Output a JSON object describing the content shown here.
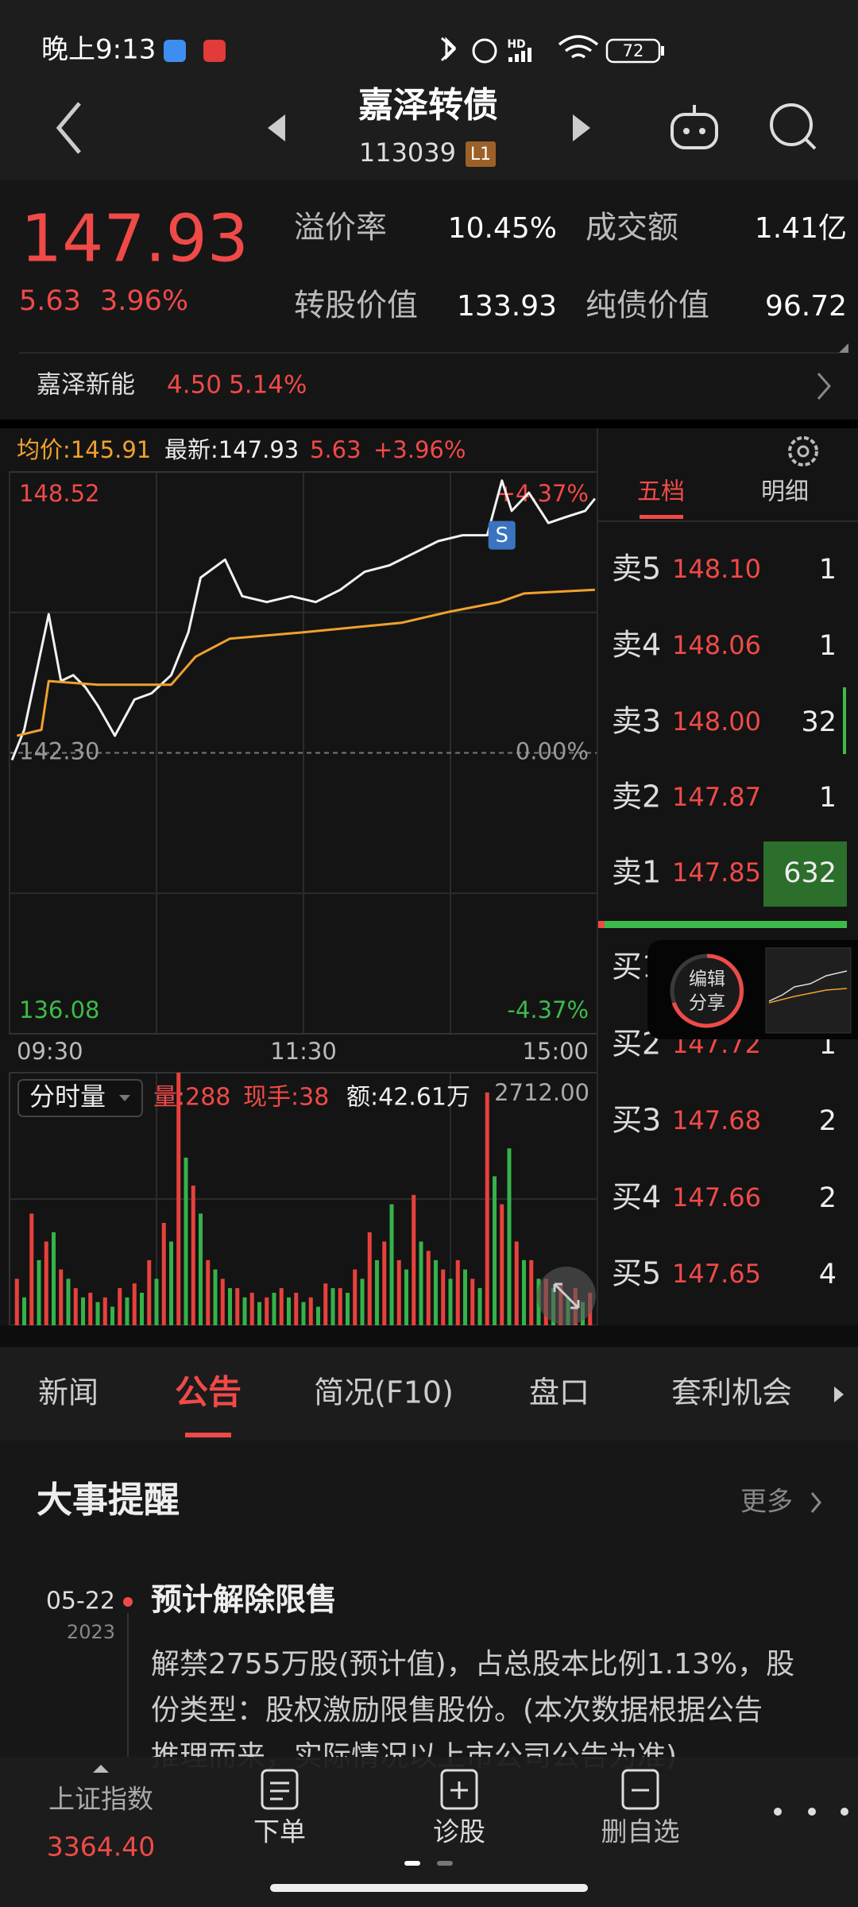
{
  "status_bar": {
    "time": "晚上9:13",
    "network": "HD",
    "battery": "72"
  },
  "header": {
    "title": "嘉泽转债",
    "code": "113039",
    "badge": "L1"
  },
  "quote": {
    "price": "147.93",
    "change": "5.63",
    "change_pct": "3.96%",
    "stats": [
      {
        "label": "溢价率",
        "value": "10.45%"
      },
      {
        "label": "成交额",
        "value": "1.41亿"
      },
      {
        "label": "转股价值",
        "value": "133.93"
      },
      {
        "label": "纯债价值",
        "value": "96.72"
      }
    ]
  },
  "related": {
    "name": "嘉泽新能",
    "price": "4.50",
    "change_pct": "5.14%"
  },
  "chart_header": {
    "avg": "均价:145.91",
    "latest": "最新:147.93",
    "change": "5.63",
    "change_pct": "+3.96%"
  },
  "chart_data": [
    {
      "type": "line",
      "xlim": [
        0,
        240
      ],
      "xticks": [
        {
          "value": 0,
          "label": "09:30"
        },
        {
          "value": 120,
          "label": "11:30"
        },
        {
          "value": 240,
          "label": "15:00"
        }
      ],
      "ylim": [
        136.08,
        148.52
      ],
      "yticks": [
        136.08,
        {
          "value": 142.3,
          "label": "142.30"
        },
        148.52
      ],
      "y2lim": [
        -4.37,
        4.37
      ],
      "y2ticks": [
        {
          "value": -4.37,
          "label": "-4.37%"
        },
        {
          "value": 0,
          "label": "0.00%"
        },
        {
          "value": 4.37,
          "label": "+4.37%"
        }
      ],
      "series": [
        {
          "color": "#f2f2f2",
          "x": [
            1,
            6,
            16,
            21,
            26,
            31,
            36,
            43,
            51,
            58,
            66,
            73,
            78,
            88,
            95,
            105,
            115,
            125,
            135,
            145,
            155,
            165,
            175,
            185,
            195,
            201,
            205,
            212,
            220,
            227,
            235,
            239
          ],
          "values": [
            142.14,
            142.81,
            145.37,
            143.89,
            144.02,
            143.75,
            143.35,
            142.68,
            143.48,
            143.62,
            144.02,
            144.97,
            146.18,
            146.58,
            145.77,
            145.64,
            145.77,
            145.64,
            145.91,
            146.31,
            146.45,
            146.72,
            146.99,
            147.12,
            147.12,
            148.33,
            147.66,
            148.06,
            147.39,
            147.52,
            147.66,
            147.93
          ]
        },
        {
          "color": "#f0a030",
          "x": [
            3,
            13,
            16,
            36,
            66,
            76,
            90,
            120,
            160,
            180,
            200,
            210,
            239
          ],
          "values": [
            142.68,
            142.81,
            143.89,
            143.81,
            143.81,
            144.43,
            144.83,
            144.97,
            145.18,
            145.43,
            145.64,
            145.83,
            145.91
          ]
        }
      ],
      "annotations": [
        {
          "text": "S",
          "x": 201,
          "y": 147.12
        }
      ]
    },
    {
      "type": "bar",
      "xlim": [
        0,
        240
      ],
      "ylim": [
        0,
        2712
      ],
      "yticks": [
        {
          "value": 2712,
          "label": "2712.00"
        }
      ],
      "series": [
        {
          "color": "#e8413c",
          "x": [
            3,
            9,
            15,
            21,
            27,
            33,
            39,
            45,
            51,
            57,
            63,
            69,
            75,
            81,
            87,
            93,
            99,
            105,
            111,
            117,
            123,
            129,
            135,
            141,
            147,
            153,
            159,
            165,
            171,
            177,
            183,
            189,
            195,
            201,
            207,
            213,
            219,
            225,
            231,
            237
          ],
          "values": [
            500,
            1200,
            900,
            600,
            400,
            350,
            300,
            400,
            450,
            700,
            1100,
            2712,
            1500,
            700,
            500,
            400,
            350,
            300,
            400,
            350,
            300,
            450,
            400,
            600,
            1000,
            900,
            700,
            1400,
            800,
            600,
            700,
            500,
            2500,
            1300,
            900,
            700,
            500,
            450,
            400,
            350
          ]
        },
        {
          "color": "#35b24a",
          "x": [
            6,
            12,
            18,
            24,
            30,
            36,
            42,
            48,
            54,
            60,
            66,
            72,
            78,
            84,
            90,
            96,
            102,
            108,
            114,
            120,
            126,
            132,
            138,
            144,
            150,
            156,
            162,
            168,
            174,
            180,
            186,
            192,
            198,
            204,
            210,
            216,
            222,
            228,
            234
          ],
          "values": [
            300,
            700,
            1000,
            500,
            300,
            250,
            200,
            300,
            350,
            500,
            900,
            1800,
            1200,
            600,
            400,
            300,
            250,
            350,
            300,
            250,
            200,
            400,
            350,
            500,
            700,
            1300,
            600,
            900,
            700,
            500,
            600,
            400,
            1600,
            1900,
            700,
            500,
            400,
            300,
            250
          ]
        }
      ]
    }
  ],
  "volume_header": {
    "mode": "分时量",
    "volume": "量:288",
    "hand": "现手:38",
    "amount": "额:42.61万"
  },
  "order_book": {
    "tabs": [
      "五档",
      "明细"
    ],
    "asks": [
      {
        "label": "卖5",
        "price": "148.10",
        "volume": "1"
      },
      {
        "label": "卖4",
        "price": "148.06",
        "volume": "1"
      },
      {
        "label": "卖3",
        "price": "148.00",
        "volume": "32"
      },
      {
        "label": "卖2",
        "price": "147.87",
        "volume": "1"
      },
      {
        "label": "卖1",
        "price": "147.85",
        "volume": "632"
      }
    ],
    "bids": [
      {
        "label": "买1"
      },
      {
        "label": "买2",
        "price": "147.72",
        "volume": "1"
      },
      {
        "label": "买3",
        "price": "147.68",
        "volume": "2"
      },
      {
        "label": "买4",
        "price": "147.66",
        "volume": "2"
      },
      {
        "label": "买5",
        "price": "147.65",
        "volume": "4"
      }
    ]
  },
  "share_widget": {
    "lines": [
      "编辑",
      "分享"
    ]
  },
  "tabs": {
    "items": [
      "新闻",
      "公告",
      "简况(F10)",
      "盘口",
      "套利机会"
    ],
    "active": 1
  },
  "events": {
    "title": "大事提醒",
    "more": "更多",
    "items": [
      {
        "date": "05-22",
        "year": "2023",
        "title": "预计解除限售",
        "lines": [
          "解禁2755万股(预计值)，占总股本比例1.13%，股",
          "份类型：股权激励限售股份。(本次数据根据公告",
          "推理而来，实际情况以上市公司公告为准)"
        ]
      }
    ]
  },
  "bottom_bar": {
    "index": {
      "name": "上证指数",
      "value": "3364.40"
    },
    "items": [
      "下单",
      "诊股",
      "删自选"
    ]
  }
}
